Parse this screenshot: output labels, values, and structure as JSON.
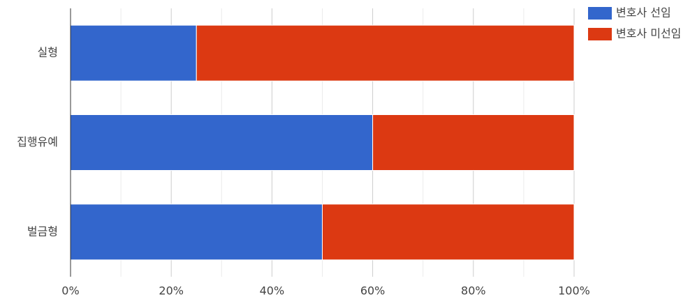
{
  "chart_data": {
    "type": "stacked-bar-horizontal",
    "categories": [
      "실형",
      "집행유예",
      "벌금형"
    ],
    "series": [
      {
        "name": "변호사 선임",
        "color": "#3366cc",
        "values": [
          25,
          60,
          50
        ]
      },
      {
        "name": "변호사 미선임",
        "color": "#dc3912",
        "values": [
          75,
          40,
          50
        ]
      }
    ],
    "xlim": [
      0,
      100
    ],
    "xticks": [
      {
        "value": 0,
        "label": "0%"
      },
      {
        "value": 20,
        "label": "20%"
      },
      {
        "value": 40,
        "label": "40%"
      },
      {
        "value": 60,
        "label": "60%"
      },
      {
        "value": 80,
        "label": "80%"
      },
      {
        "value": 100,
        "label": "100%"
      }
    ],
    "xminorticks": [
      10,
      30,
      50,
      70,
      90
    ],
    "grid": true,
    "legend": "top-right"
  }
}
